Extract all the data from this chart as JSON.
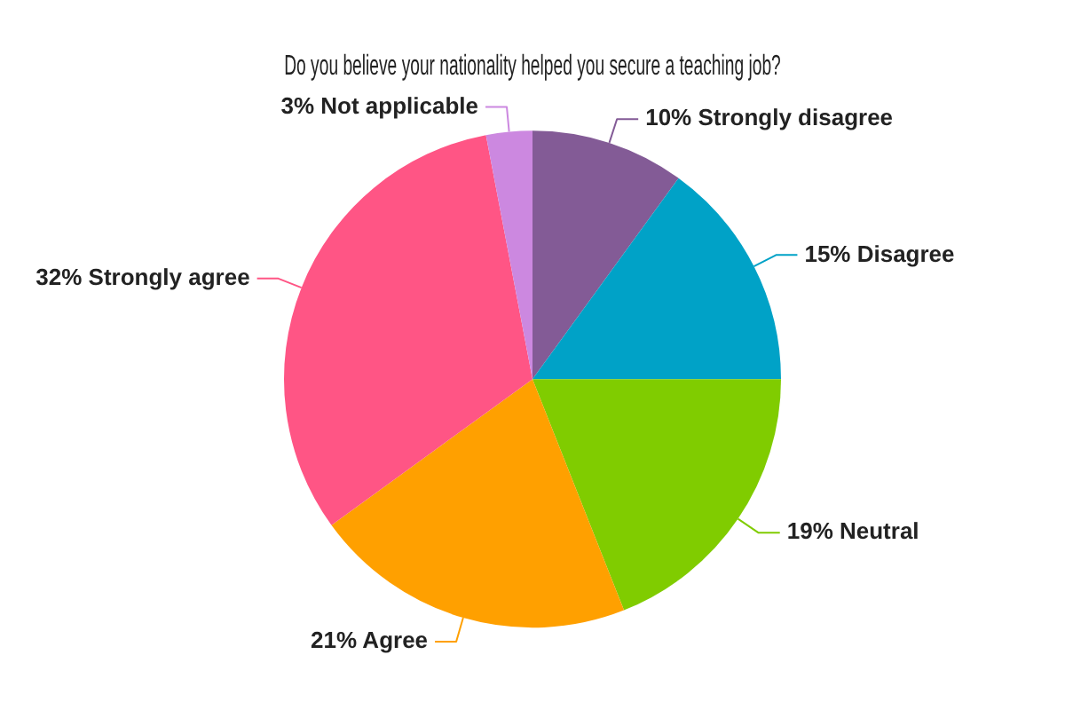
{
  "chart_data": {
    "type": "pie",
    "title": "Do you believe your nationality helped you secure a teaching job?",
    "categories": [
      "Strongly disagree",
      "Disagree",
      "Neutral",
      "Agree",
      "Strongly agree",
      "Not applicable"
    ],
    "values": [
      10,
      15,
      19,
      21,
      32,
      3
    ],
    "value_labels": [
      "10%",
      "15%",
      "19%",
      "21%",
      "32%",
      "3%"
    ],
    "colors": [
      "#835b96",
      "#00a2c7",
      "#80cc00",
      "#ffa000",
      "#ff5585",
      "#cc88e0"
    ],
    "legend": false
  }
}
